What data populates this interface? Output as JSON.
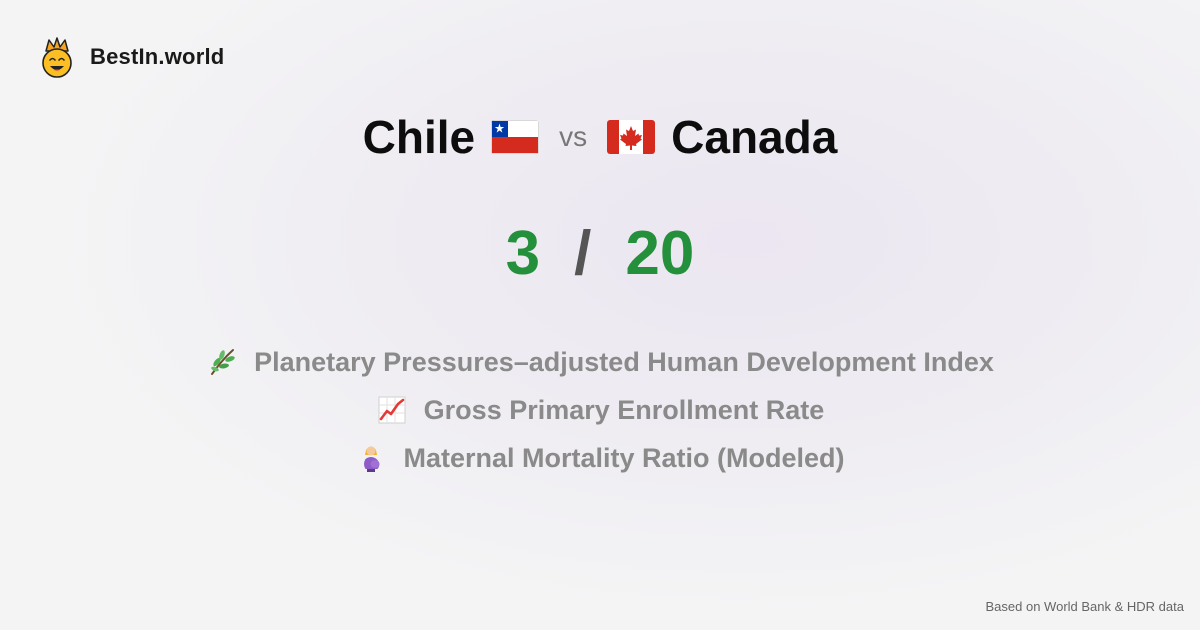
{
  "brand": {
    "name": "BestIn.world",
    "logo_icon": "crowned-smiley-icon"
  },
  "comparison": {
    "left_country": "Chile",
    "left_flag": "chile-flag-icon",
    "vs_label": "vs",
    "right_country": "Canada",
    "right_flag": "canada-flag-icon"
  },
  "score": {
    "left": "3",
    "separator": "/",
    "right": "20",
    "color": "#24903b"
  },
  "metrics": [
    {
      "icon": "herb-icon",
      "label": "Planetary Pressures–adjusted Human Development Index"
    },
    {
      "icon": "chart-increasing-icon",
      "label": "Gross Primary Enrollment Rate"
    },
    {
      "icon": "pregnant-woman-icon",
      "label": "Maternal Mortality Ratio (Modeled)"
    }
  ],
  "footer": {
    "source": "Based on World Bank & HDR data"
  }
}
